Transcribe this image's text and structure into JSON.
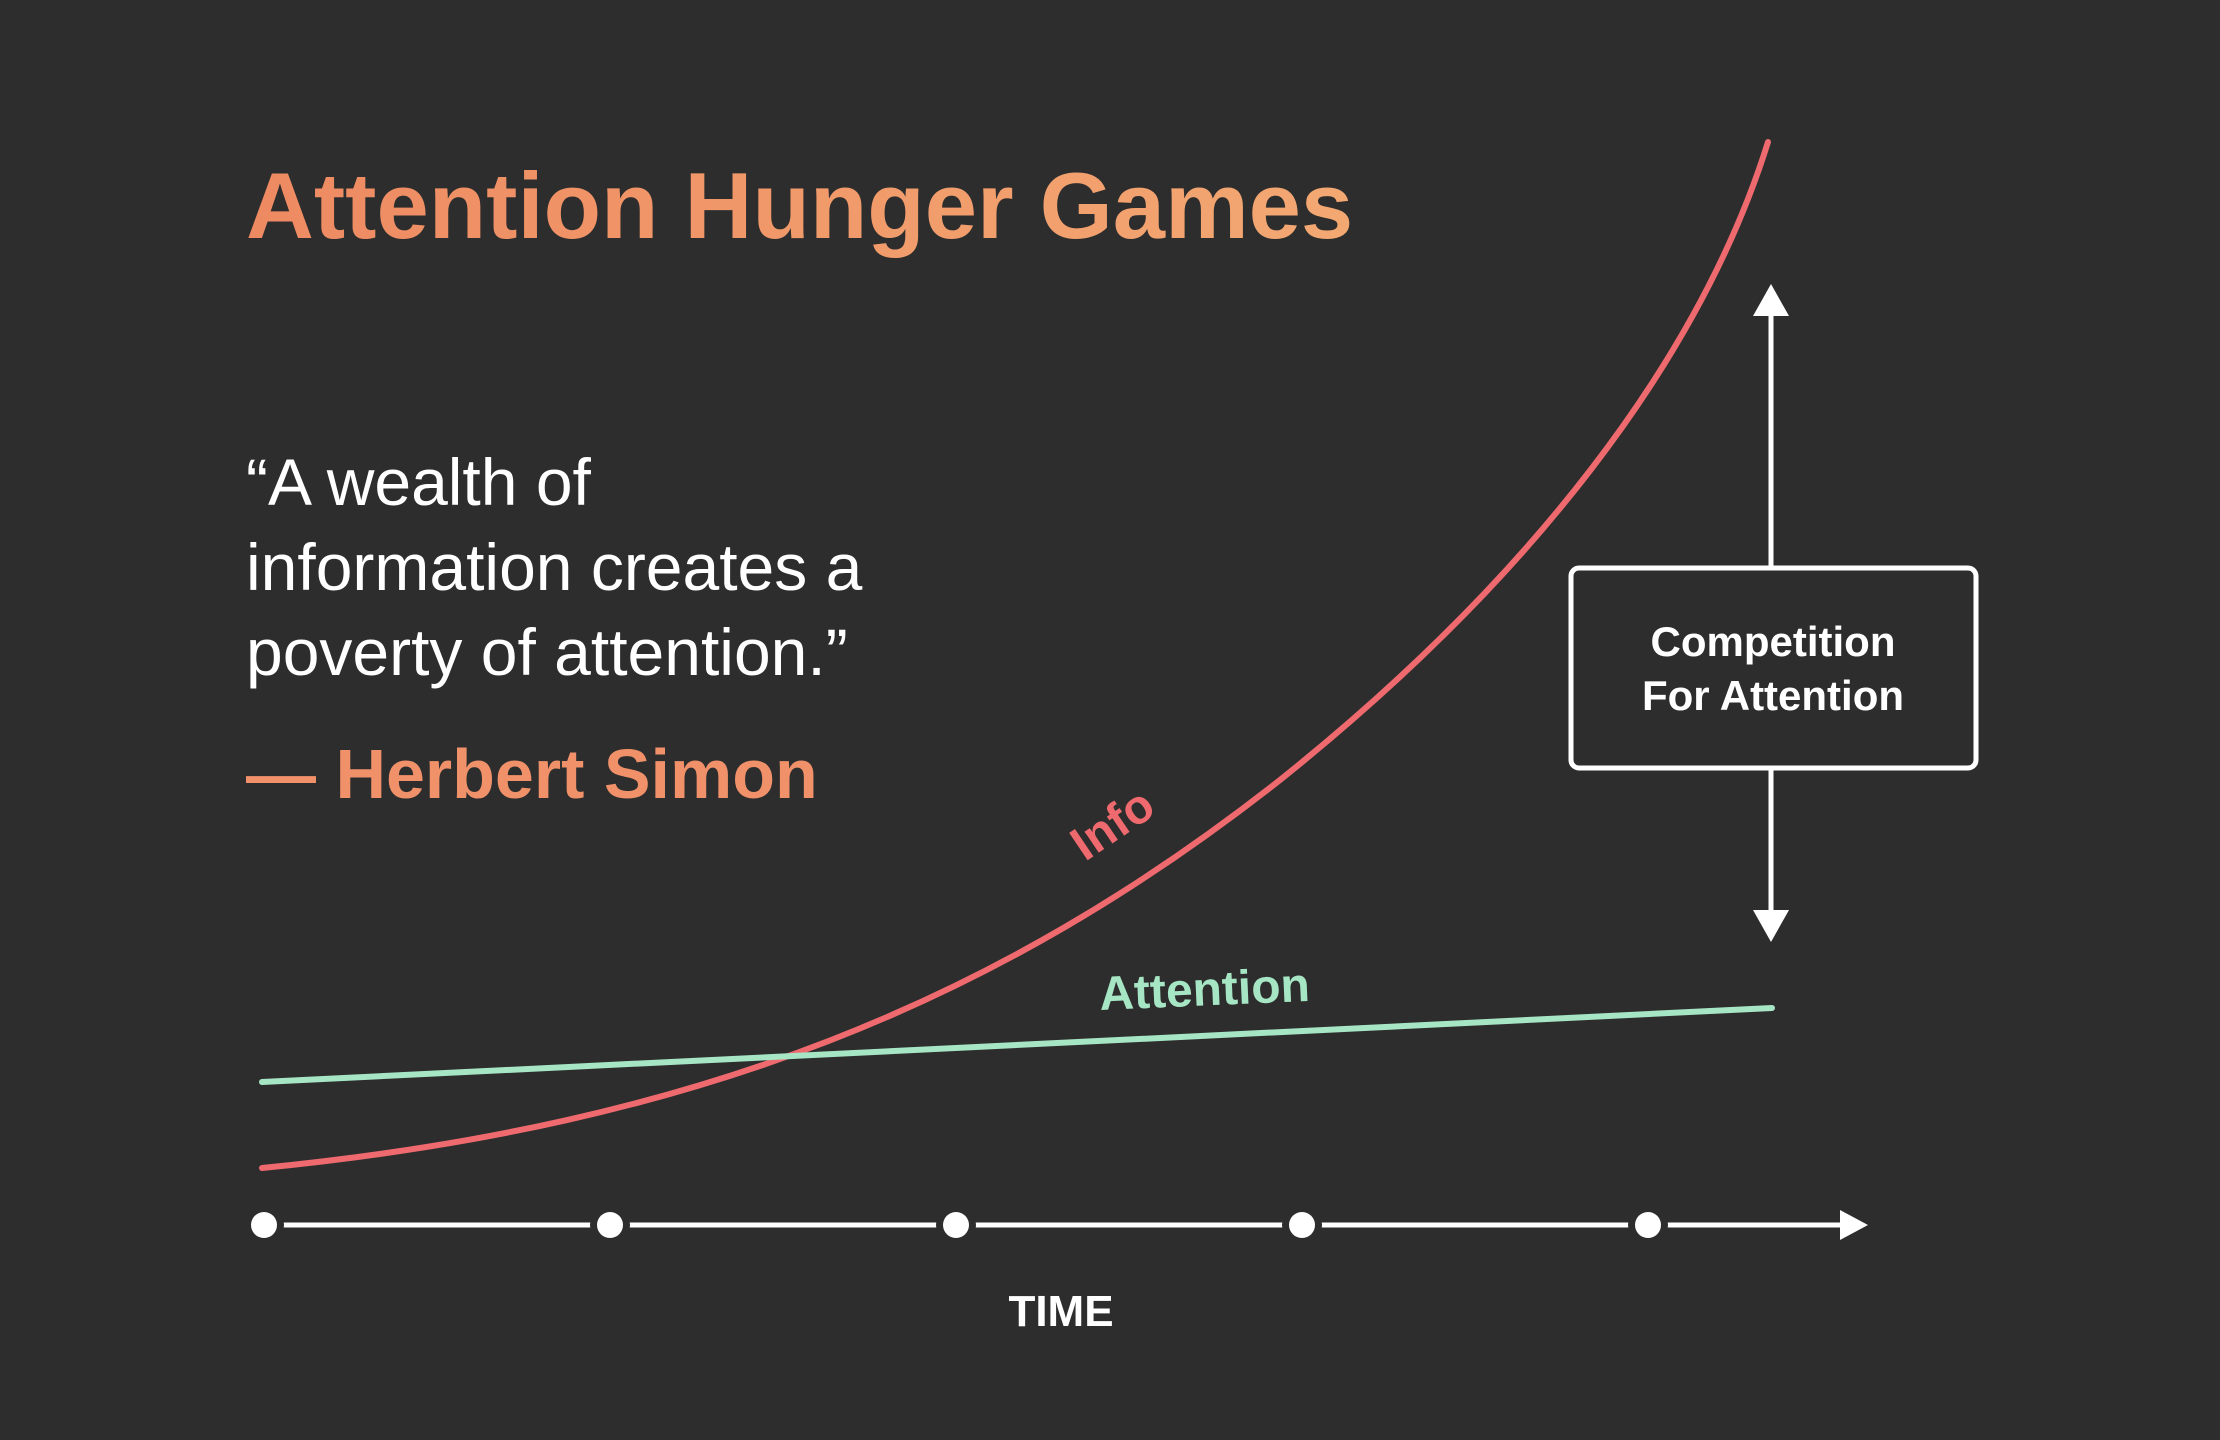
{
  "title": "Attention Hunger Games",
  "quote": {
    "lines": [
      "“A wealth of",
      "information creates a",
      "poverty of attention.”"
    ],
    "author": "— Herbert Simon"
  },
  "curves": {
    "info": {
      "label": "Info",
      "color": "#ee6a6e"
    },
    "attention": {
      "label": "Attention",
      "color": "#a6e6c4"
    }
  },
  "box": {
    "lines": [
      "Competition",
      "For Attention"
    ]
  },
  "axis": {
    "label": "TIME",
    "tick_count": 5
  },
  "colors": {
    "background": "#2d2d2d",
    "title": "#f09a6c",
    "text": "#ffffff"
  }
}
